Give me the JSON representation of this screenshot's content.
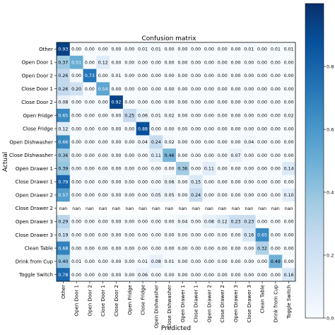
{
  "chart_data": {
    "type": "heatmap",
    "title": "Confusion matrix",
    "xlabel": "Predicted",
    "ylabel": "Actual",
    "labels": [
      "Other",
      "Open Door 1",
      "Open Door 2",
      "Close Door 1",
      "Close Door 2",
      "Open Fridge",
      "Close Fridge",
      "Open Dishwasher",
      "Close Dishwasher",
      "Open Drawer 1",
      "Close Drawer 1",
      "Open Drawer 2",
      "Close Drawer 2",
      "Open Drawer 3",
      "Close Drawer 3",
      "Clean Table",
      "Drink from Cup",
      "Toggle Switch"
    ],
    "matrix": [
      [
        "0.93",
        "0.00",
        "0.00",
        "0.00",
        "0.00",
        "0.00",
        "0.01",
        "0.01",
        "0.00",
        "0.00",
        "0.00",
        "0.00",
        "0.00",
        "0.00",
        "0.01",
        "0.00",
        "0.01",
        "0.01"
      ],
      [
        "0.37",
        "0.51",
        "0.00",
        "0.12",
        "0.00",
        "0.00",
        "0.00",
        "0.00",
        "0.00",
        "0.00",
        "0.00",
        "0.00",
        "0.00",
        "0.00",
        "0.00",
        "0.00",
        "0.00",
        "0.00"
      ],
      [
        "0.26",
        "0.00",
        "0.73",
        "0.00",
        "0.01",
        "0.00",
        "0.00",
        "0.00",
        "0.00",
        "0.00",
        "0.00",
        "0.00",
        "0.00",
        "0.00",
        "0.00",
        "0.00",
        "0.00",
        "0.00"
      ],
      [
        "0.26",
        "0.20",
        "0.00",
        "0.54",
        "0.00",
        "0.00",
        "0.00",
        "0.00",
        "0.00",
        "0.00",
        "0.00",
        "0.00",
        "0.00",
        "0.00",
        "0.00",
        "0.00",
        "0.00",
        "0.00"
      ],
      [
        "0.08",
        "0.00",
        "0.00",
        "0.00",
        "0.92",
        "0.00",
        "0.00",
        "0.00",
        "0.00",
        "0.00",
        "0.00",
        "0.00",
        "0.00",
        "0.00",
        "0.00",
        "0.00",
        "0.00",
        "0.00"
      ],
      [
        "0.65",
        "0.00",
        "0.00",
        "0.00",
        "0.00",
        "0.25",
        "0.06",
        "0.01",
        "0.02",
        "0.00",
        "0.00",
        "0.00",
        "0.00",
        "0.00",
        "0.00",
        "0.00",
        "0.00",
        "0.02"
      ],
      [
        "0.12",
        "0.00",
        "0.00",
        "0.00",
        "0.00",
        "0.00",
        "0.88",
        "0.00",
        "0.00",
        "0.00",
        "0.00",
        "0.00",
        "0.00",
        "0.00",
        "0.00",
        "0.00",
        "0.00",
        "0.00"
      ],
      [
        "0.66",
        "0.00",
        "0.00",
        "0.00",
        "0.00",
        "0.00",
        "0.04",
        "0.24",
        "0.02",
        "0.00",
        "0.00",
        "0.00",
        "0.00",
        "0.00",
        "0.04",
        "0.00",
        "0.00",
        "0.00"
      ],
      [
        "0.36",
        "0.00",
        "0.00",
        "0.00",
        "0.00",
        "0.00",
        "0.00",
        "0.11",
        "0.46",
        "0.00",
        "0.00",
        "0.00",
        "0.00",
        "0.07",
        "0.00",
        "0.00",
        "0.00",
        "0.00"
      ],
      [
        "0.39",
        "0.00",
        "0.00",
        "0.00",
        "0.00",
        "0.00",
        "0.00",
        "0.00",
        "0.00",
        "0.36",
        "0.00",
        "0.11",
        "0.00",
        "0.00",
        "0.00",
        "0.00",
        "0.00",
        "0.14"
      ],
      [
        "0.79",
        "0.00",
        "0.00",
        "0.00",
        "0.00",
        "0.00",
        "0.00",
        "0.00",
        "0.06",
        "0.00",
        "0.15",
        "0.00",
        "0.00",
        "0.00",
        "0.00",
        "0.00",
        "0.00",
        "0.00"
      ],
      [
        "0.57",
        "0.00",
        "0.00",
        "0.00",
        "0.00",
        "0.00",
        "0.00",
        "0.05",
        "0.05",
        "0.00",
        "0.24",
        "0.00",
        "0.00",
        "0.00",
        "0.00",
        "0.00",
        "0.00",
        "0.10"
      ],
      [
        "nan",
        "nan",
        "nan",
        "nan",
        "nan",
        "nan",
        "nan",
        "nan",
        "nan",
        "nan",
        "nan",
        "nan",
        "nan",
        "nan",
        "nan",
        "nan",
        "nan",
        "nan"
      ],
      [
        "0.29",
        "0.00",
        "0.00",
        "0.00",
        "0.00",
        "0.00",
        "0.00",
        "0.00",
        "0.00",
        "0.04",
        "0.00",
        "0.08",
        "0.12",
        "0.23",
        "0.23",
        "0.00",
        "0.00",
        "0.00"
      ],
      [
        "0.19",
        "0.00",
        "0.00",
        "0.00",
        "0.00",
        "0.00",
        "0.00",
        "0.00",
        "0.00",
        "0.00",
        "0.00",
        "0.00",
        "0.00",
        "0.00",
        "0.16",
        "0.65",
        "0.00",
        "0.00"
      ],
      [
        "0.68",
        "0.00",
        "0.00",
        "0.00",
        "0.00",
        "0.00",
        "0.00",
        "0.00",
        "0.00",
        "0.00",
        "0.00",
        "0.00",
        "0.00",
        "0.00",
        "0.00",
        "0.32",
        "0.00",
        "0.00"
      ],
      [
        "0.40",
        "0.01",
        "0.00",
        "0.00",
        "0.00",
        "0.00",
        "0.01",
        "0.08",
        "0.01",
        "0.00",
        "0.00",
        "0.00",
        "0.00",
        "0.00",
        "0.00",
        "0.00",
        "0.49",
        "0.00"
      ],
      [
        "0.78",
        "0.00",
        "0.00",
        "0.00",
        "0.00",
        "0.00",
        "0.06",
        "0.00",
        "0.00",
        "0.00",
        "0.00",
        "0.00",
        "0.00",
        "0.00",
        "0.00",
        "0.00",
        "0.00",
        "0.16"
      ]
    ],
    "colorbar": {
      "ticks": [
        "0.0",
        "0.2",
        "0.4",
        "0.6",
        "0.8"
      ],
      "range": [
        0,
        1
      ],
      "colormap": "Blues",
      "low_color": "#f7fbff",
      "high_color": "#08306b"
    }
  }
}
